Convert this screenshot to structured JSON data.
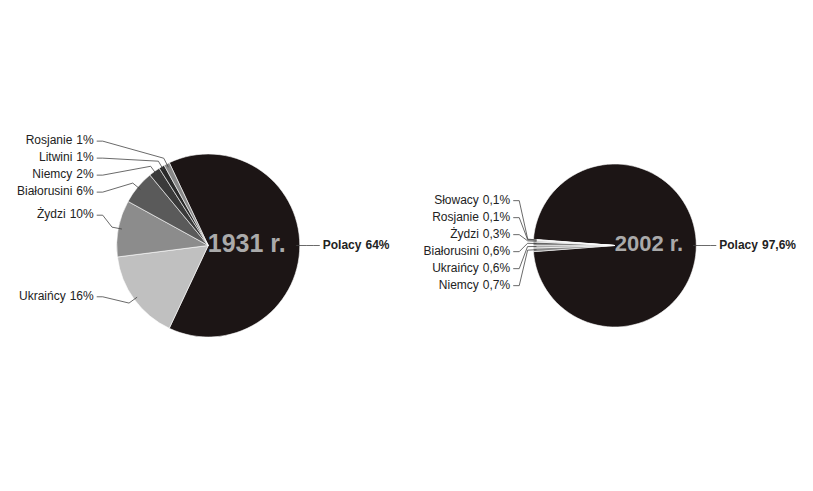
{
  "chart_data": [
    {
      "type": "pie",
      "title": "1931 r.",
      "categories": [
        "Polacy",
        "Ukraińcy",
        "Żydzi",
        "Białorusini",
        "Niemcy",
        "Litwini",
        "Rosjanie"
      ],
      "values": [
        64,
        16,
        10,
        6,
        2,
        1,
        1
      ],
      "value_labels": [
        "64%",
        "16%",
        "10%",
        "6%",
        "2%",
        "1%",
        "1%"
      ],
      "colors": [
        "#1c1515",
        "#c0c0c0",
        "#8c8c8c",
        "#5a5a5a",
        "#3a3a3a",
        "#2a2a2a",
        "#888888"
      ]
    },
    {
      "type": "pie",
      "title": "2002 r.",
      "categories": [
        "Polacy",
        "Niemcy",
        "Ukraińcy",
        "Białorusini",
        "Żydzi",
        "Rosjanie",
        "Słowacy"
      ],
      "values": [
        97.6,
        0.7,
        0.6,
        0.6,
        0.3,
        0.1,
        0.1
      ],
      "value_labels": [
        "97,6%",
        "0,7%",
        "0,6%",
        "0,6%",
        "0,3%",
        "0,1%",
        "0,1%"
      ],
      "colors": [
        "#1c1515",
        "#888888",
        "#aaaaaa",
        "#666666",
        "#bbbbbb",
        "#999999",
        "#cccccc"
      ]
    }
  ]
}
